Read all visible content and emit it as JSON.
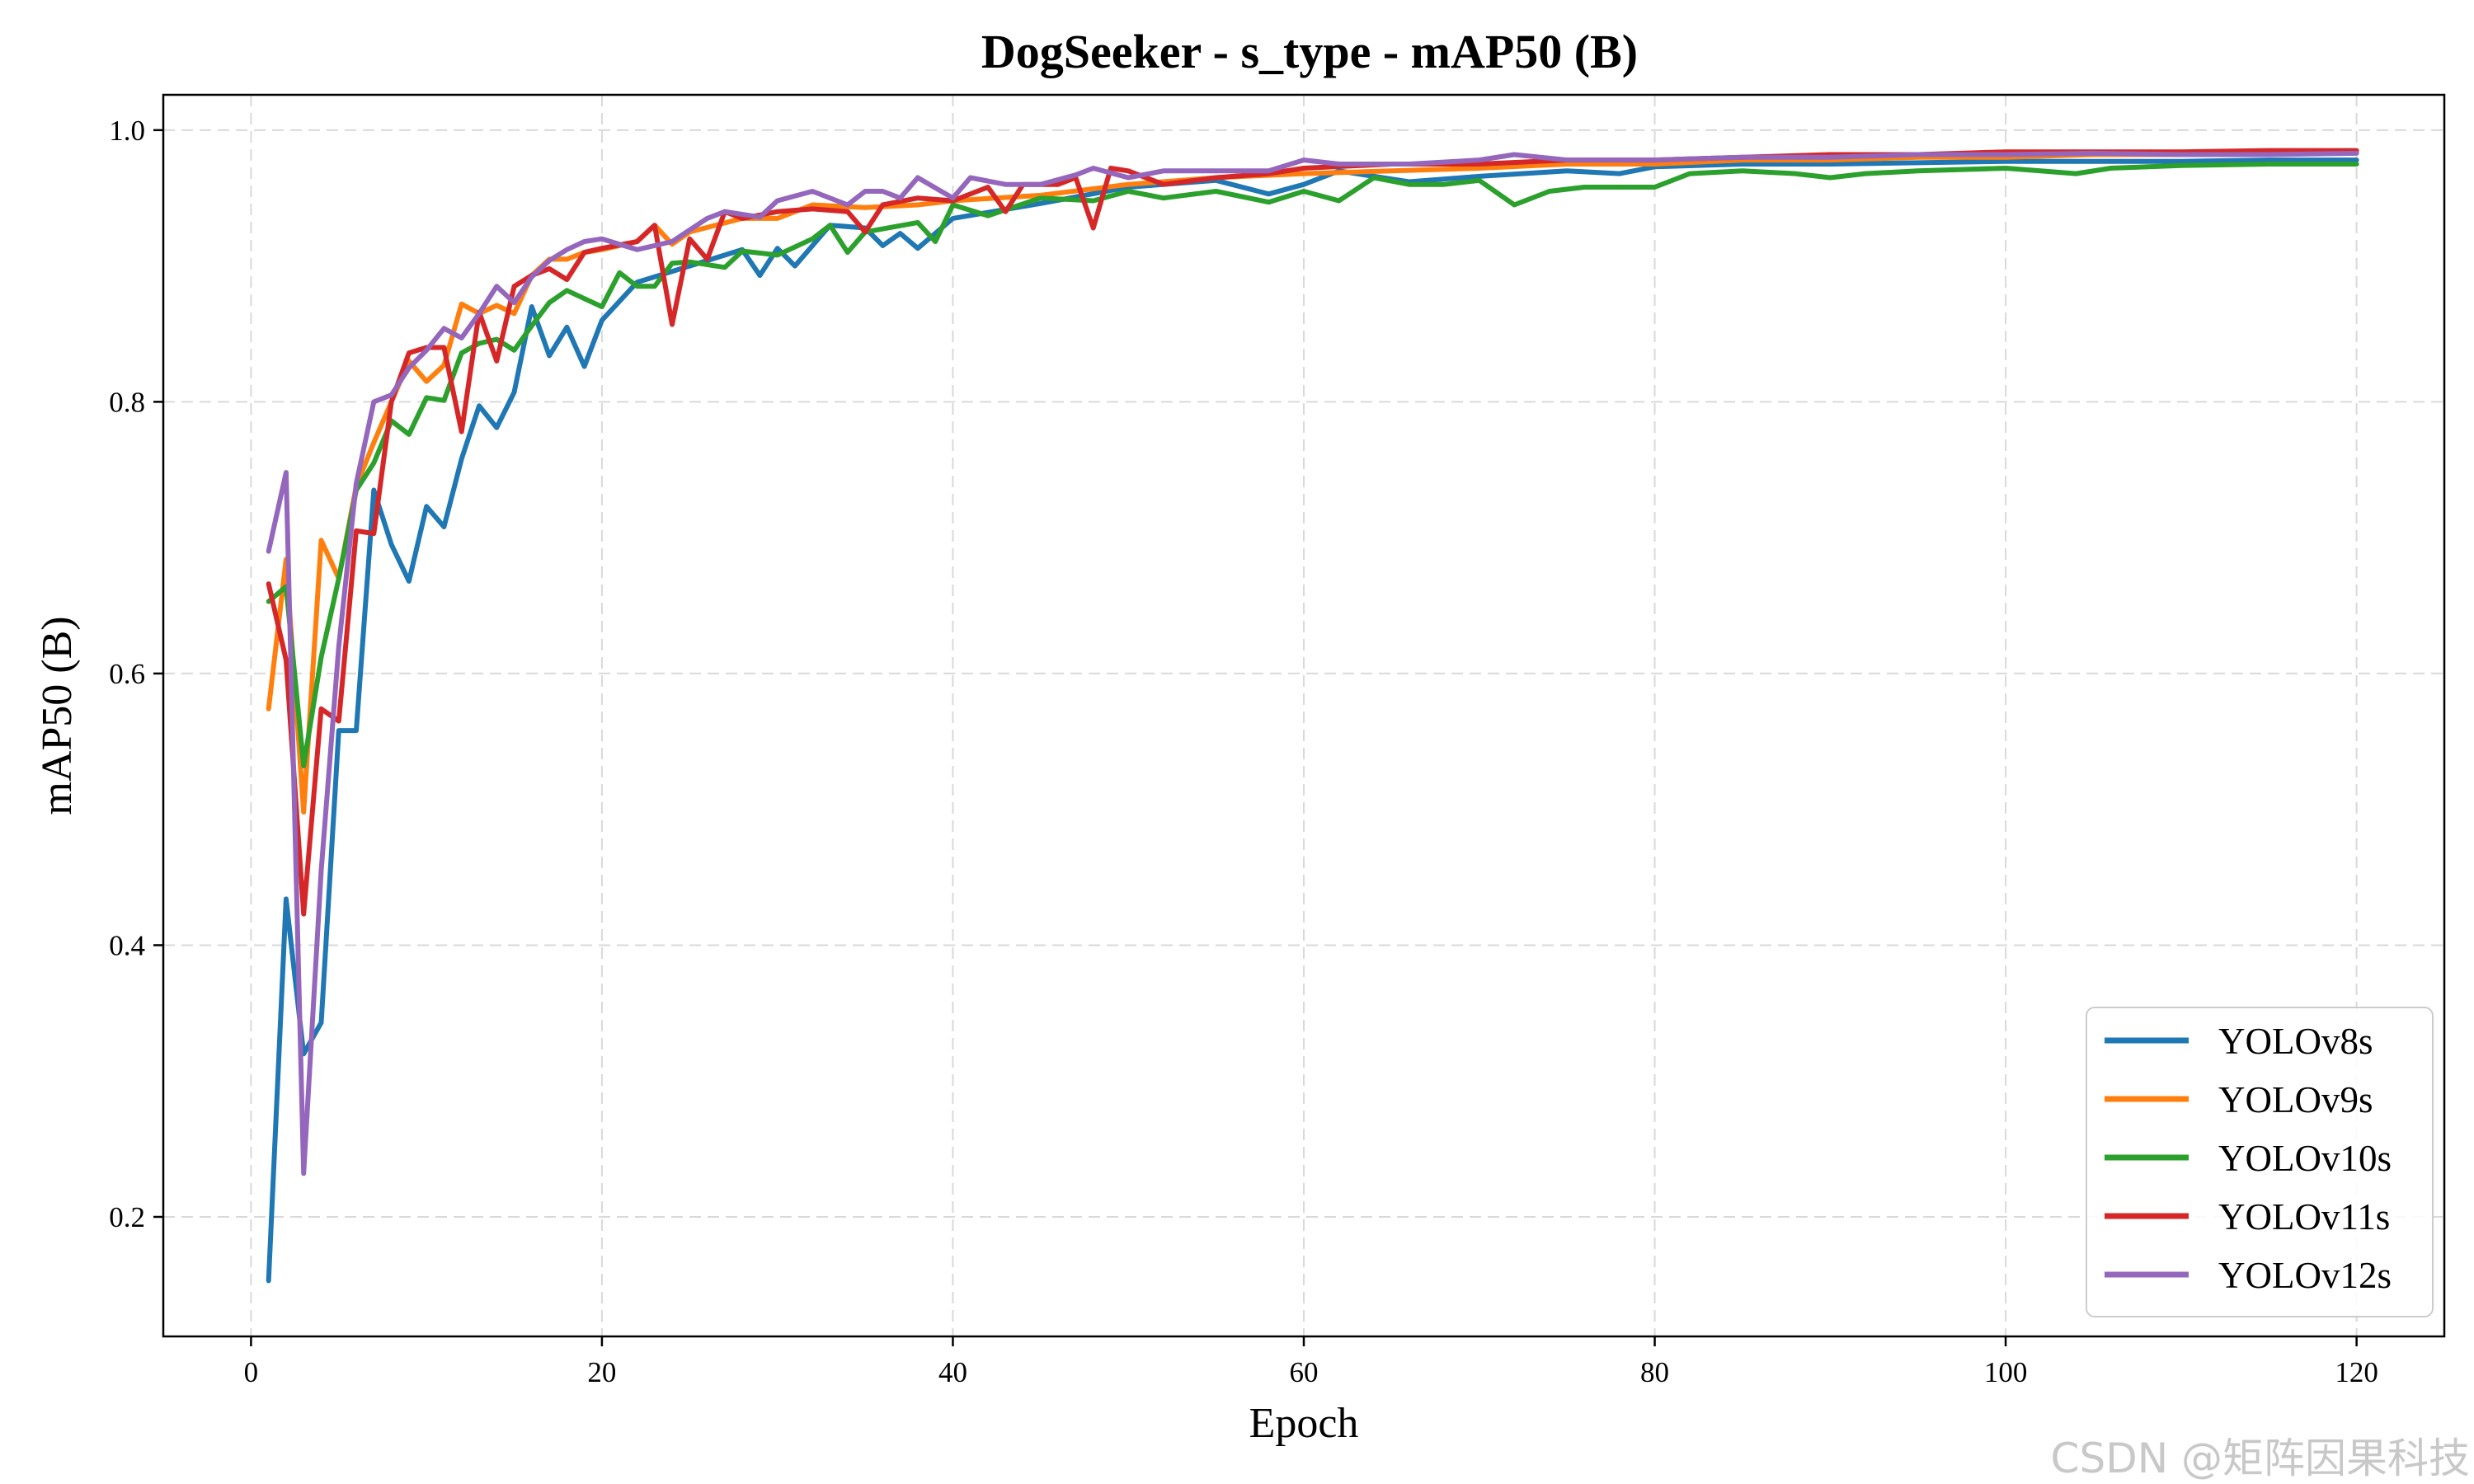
{
  "chart_data": {
    "type": "line",
    "title": "DogSeeker - s_type - mAP50 (B)",
    "xlabel": "Epoch",
    "ylabel": "mAP50 (B)",
    "xlim": [
      -5,
      125
    ],
    "ylim": [
      0.112,
      1.026
    ],
    "xticks": [
      0,
      20,
      40,
      60,
      80,
      100,
      120
    ],
    "yticks": [
      0.2,
      0.4,
      0.6,
      0.8,
      1.0
    ],
    "xtick_labels": [
      "0",
      "20",
      "40",
      "60",
      "80",
      "100",
      "120"
    ],
    "ytick_labels": [
      "0.2",
      "0.4",
      "0.6",
      "0.8",
      "1.0"
    ],
    "grid": true,
    "legend_position": "lower-right",
    "series": [
      {
        "name": "YOLOv8s",
        "color": "#1f77b4",
        "points": [
          [
            1,
            0.153
          ],
          [
            2,
            0.434
          ],
          [
            3,
            0.32
          ],
          [
            4,
            0.343
          ],
          [
            5,
            0.558
          ],
          [
            6,
            0.558
          ],
          [
            7,
            0.735
          ],
          [
            8,
            0.695
          ],
          [
            9,
            0.668
          ],
          [
            10,
            0.723
          ],
          [
            11,
            0.708
          ],
          [
            12,
            0.758
          ],
          [
            13,
            0.797
          ],
          [
            14,
            0.781
          ],
          [
            15,
            0.807
          ],
          [
            16,
            0.87
          ],
          [
            17,
            0.834
          ],
          [
            18,
            0.855
          ],
          [
            19,
            0.826
          ],
          [
            20,
            0.86
          ],
          [
            22,
            0.888
          ],
          [
            25,
            0.9
          ],
          [
            28,
            0.912
          ],
          [
            29,
            0.893
          ],
          [
            30,
            0.913
          ],
          [
            31,
            0.9
          ],
          [
            33,
            0.93
          ],
          [
            35,
            0.928
          ],
          [
            36,
            0.915
          ],
          [
            37,
            0.924
          ],
          [
            38,
            0.913
          ],
          [
            40,
            0.935
          ],
          [
            45,
            0.946
          ],
          [
            50,
            0.958
          ],
          [
            55,
            0.963
          ],
          [
            58,
            0.953
          ],
          [
            60,
            0.96
          ],
          [
            62,
            0.97
          ],
          [
            66,
            0.962
          ],
          [
            70,
            0.966
          ],
          [
            75,
            0.97
          ],
          [
            78,
            0.968
          ],
          [
            80,
            0.973
          ],
          [
            85,
            0.975
          ],
          [
            90,
            0.975
          ],
          [
            95,
            0.976
          ],
          [
            100,
            0.977
          ],
          [
            105,
            0.977
          ],
          [
            110,
            0.977
          ],
          [
            115,
            0.978
          ],
          [
            120,
            0.978
          ]
        ]
      },
      {
        "name": "YOLOv9s",
        "color": "#ff7f0e",
        "points": [
          [
            1,
            0.574
          ],
          [
            2,
            0.684
          ],
          [
            3,
            0.498
          ],
          [
            4,
            0.698
          ],
          [
            5,
            0.67
          ],
          [
            6,
            0.738
          ],
          [
            7,
            0.77
          ],
          [
            8,
            0.8
          ],
          [
            9,
            0.83
          ],
          [
            10,
            0.815
          ],
          [
            11,
            0.827
          ],
          [
            12,
            0.872
          ],
          [
            13,
            0.865
          ],
          [
            14,
            0.871
          ],
          [
            15,
            0.865
          ],
          [
            16,
            0.893
          ],
          [
            17,
            0.905
          ],
          [
            18,
            0.905
          ],
          [
            19,
            0.91
          ],
          [
            20,
            0.912
          ],
          [
            22,
            0.918
          ],
          [
            23,
            0.93
          ],
          [
            24,
            0.916
          ],
          [
            25,
            0.925
          ],
          [
            28,
            0.935
          ],
          [
            30,
            0.935
          ],
          [
            32,
            0.945
          ],
          [
            35,
            0.943
          ],
          [
            38,
            0.945
          ],
          [
            40,
            0.948
          ],
          [
            45,
            0.952
          ],
          [
            50,
            0.96
          ],
          [
            55,
            0.965
          ],
          [
            60,
            0.968
          ],
          [
            65,
            0.97
          ],
          [
            70,
            0.972
          ],
          [
            75,
            0.975
          ],
          [
            80,
            0.975
          ],
          [
            85,
            0.978
          ],
          [
            90,
            0.978
          ],
          [
            95,
            0.98
          ],
          [
            100,
            0.98
          ],
          [
            105,
            0.982
          ],
          [
            110,
            0.982
          ],
          [
            115,
            0.983
          ],
          [
            120,
            0.984
          ]
        ]
      },
      {
        "name": "YOLOv10s",
        "color": "#2ca02c",
        "points": [
          [
            1,
            0.653
          ],
          [
            2,
            0.664
          ],
          [
            3,
            0.532
          ],
          [
            4,
            0.612
          ],
          [
            5,
            0.67
          ],
          [
            6,
            0.735
          ],
          [
            7,
            0.755
          ],
          [
            8,
            0.786
          ],
          [
            9,
            0.776
          ],
          [
            10,
            0.803
          ],
          [
            11,
            0.801
          ],
          [
            12,
            0.836
          ],
          [
            13,
            0.843
          ],
          [
            14,
            0.846
          ],
          [
            15,
            0.838
          ],
          [
            16,
            0.856
          ],
          [
            17,
            0.873
          ],
          [
            18,
            0.882
          ],
          [
            19,
            0.876
          ],
          [
            20,
            0.87
          ],
          [
            21,
            0.895
          ],
          [
            22,
            0.885
          ],
          [
            23,
            0.885
          ],
          [
            24,
            0.902
          ],
          [
            25,
            0.903
          ],
          [
            27,
            0.899
          ],
          [
            28,
            0.911
          ],
          [
            30,
            0.908
          ],
          [
            32,
            0.92
          ],
          [
            33,
            0.93
          ],
          [
            34,
            0.91
          ],
          [
            35,
            0.925
          ],
          [
            38,
            0.932
          ],
          [
            39,
            0.918
          ],
          [
            40,
            0.945
          ],
          [
            42,
            0.937
          ],
          [
            45,
            0.95
          ],
          [
            48,
            0.948
          ],
          [
            50,
            0.955
          ],
          [
            52,
            0.95
          ],
          [
            55,
            0.955
          ],
          [
            58,
            0.947
          ],
          [
            60,
            0.955
          ],
          [
            62,
            0.948
          ],
          [
            64,
            0.965
          ],
          [
            66,
            0.96
          ],
          [
            68,
            0.96
          ],
          [
            70,
            0.963
          ],
          [
            72,
            0.945
          ],
          [
            74,
            0.955
          ],
          [
            76,
            0.958
          ],
          [
            80,
            0.958
          ],
          [
            82,
            0.968
          ],
          [
            85,
            0.97
          ],
          [
            88,
            0.968
          ],
          [
            90,
            0.965
          ],
          [
            92,
            0.968
          ],
          [
            95,
            0.97
          ],
          [
            100,
            0.972
          ],
          [
            102,
            0.97
          ],
          [
            104,
            0.968
          ],
          [
            106,
            0.972
          ],
          [
            110,
            0.974
          ],
          [
            115,
            0.975
          ],
          [
            120,
            0.975
          ]
        ]
      },
      {
        "name": "YOLOv11s",
        "color": "#d62728",
        "points": [
          [
            1,
            0.666
          ],
          [
            2,
            0.61
          ],
          [
            3,
            0.423
          ],
          [
            4,
            0.574
          ],
          [
            5,
            0.565
          ],
          [
            6,
            0.705
          ],
          [
            7,
            0.703
          ],
          [
            8,
            0.8
          ],
          [
            9,
            0.836
          ],
          [
            10,
            0.84
          ],
          [
            11,
            0.84
          ],
          [
            12,
            0.778
          ],
          [
            13,
            0.866
          ],
          [
            14,
            0.83
          ],
          [
            15,
            0.885
          ],
          [
            16,
            0.893
          ],
          [
            17,
            0.898
          ],
          [
            18,
            0.89
          ],
          [
            19,
            0.91
          ],
          [
            20,
            0.913
          ],
          [
            22,
            0.918
          ],
          [
            23,
            0.93
          ],
          [
            24,
            0.857
          ],
          [
            25,
            0.92
          ],
          [
            26,
            0.905
          ],
          [
            27,
            0.94
          ],
          [
            28,
            0.935
          ],
          [
            30,
            0.94
          ],
          [
            32,
            0.942
          ],
          [
            34,
            0.94
          ],
          [
            35,
            0.925
          ],
          [
            36,
            0.945
          ],
          [
            38,
            0.95
          ],
          [
            40,
            0.948
          ],
          [
            42,
            0.958
          ],
          [
            43,
            0.94
          ],
          [
            44,
            0.96
          ],
          [
            46,
            0.96
          ],
          [
            47,
            0.965
          ],
          [
            48,
            0.928
          ],
          [
            49,
            0.972
          ],
          [
            50,
            0.97
          ],
          [
            52,
            0.96
          ],
          [
            55,
            0.965
          ],
          [
            58,
            0.968
          ],
          [
            60,
            0.972
          ],
          [
            65,
            0.975
          ],
          [
            70,
            0.975
          ],
          [
            75,
            0.978
          ],
          [
            80,
            0.978
          ],
          [
            85,
            0.98
          ],
          [
            90,
            0.982
          ],
          [
            95,
            0.982
          ],
          [
            100,
            0.984
          ],
          [
            105,
            0.984
          ],
          [
            110,
            0.984
          ],
          [
            115,
            0.985
          ],
          [
            120,
            0.985
          ]
        ]
      },
      {
        "name": "YOLOv12s",
        "color": "#9467bd",
        "points": [
          [
            1,
            0.69
          ],
          [
            2,
            0.748
          ],
          [
            3,
            0.232
          ],
          [
            4,
            0.455
          ],
          [
            5,
            0.62
          ],
          [
            6,
            0.74
          ],
          [
            7,
            0.8
          ],
          [
            8,
            0.805
          ],
          [
            9,
            0.825
          ],
          [
            10,
            0.838
          ],
          [
            11,
            0.854
          ],
          [
            12,
            0.847
          ],
          [
            13,
            0.865
          ],
          [
            14,
            0.885
          ],
          [
            15,
            0.873
          ],
          [
            16,
            0.892
          ],
          [
            17,
            0.904
          ],
          [
            18,
            0.912
          ],
          [
            19,
            0.918
          ],
          [
            20,
            0.92
          ],
          [
            22,
            0.912
          ],
          [
            24,
            0.918
          ],
          [
            26,
            0.935
          ],
          [
            27,
            0.94
          ],
          [
            29,
            0.936
          ],
          [
            30,
            0.948
          ],
          [
            32,
            0.955
          ],
          [
            34,
            0.945
          ],
          [
            35,
            0.955
          ],
          [
            36,
            0.955
          ],
          [
            37,
            0.95
          ],
          [
            38,
            0.965
          ],
          [
            40,
            0.95
          ],
          [
            41,
            0.965
          ],
          [
            43,
            0.96
          ],
          [
            45,
            0.96
          ],
          [
            47,
            0.967
          ],
          [
            48,
            0.972
          ],
          [
            50,
            0.965
          ],
          [
            52,
            0.97
          ],
          [
            55,
            0.97
          ],
          [
            58,
            0.97
          ],
          [
            60,
            0.978
          ],
          [
            62,
            0.975
          ],
          [
            64,
            0.975
          ],
          [
            66,
            0.975
          ],
          [
            70,
            0.978
          ],
          [
            72,
            0.982
          ],
          [
            75,
            0.978
          ],
          [
            80,
            0.978
          ],
          [
            85,
            0.98
          ],
          [
            90,
            0.98
          ],
          [
            95,
            0.982
          ],
          [
            100,
            0.982
          ],
          [
            105,
            0.983
          ],
          [
            110,
            0.982
          ],
          [
            115,
            0.982
          ],
          [
            120,
            0.983
          ]
        ]
      }
    ]
  },
  "watermark": "CSDN @矩阵因果科技"
}
